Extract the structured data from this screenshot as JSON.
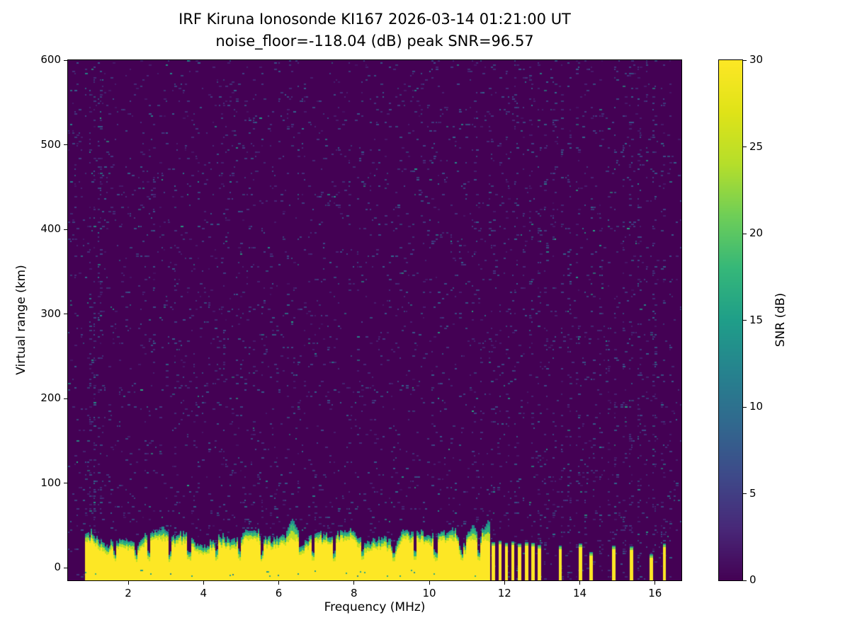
{
  "chart_data": {
    "type": "heatmap",
    "title_line1": "IRF Kiruna Ionosonde KI167 2026-03-14 01:21:00  UT",
    "title_line2": "noise_floor=-118.04 (dB) peak SNR=96.57",
    "station": "KI167",
    "datetime_ut": "2026-03-14 01:21:00",
    "noise_floor_db": -118.04,
    "peak_snr_db": 96.57,
    "xlabel": "Frequency (MHz)",
    "ylabel": "Virtual range (km)",
    "colorbar_label": "SNR (dB)",
    "xlim": [
      0.4,
      16.7
    ],
    "ylim": [
      -15,
      600
    ],
    "clim": [
      0,
      30
    ],
    "x_ticks": [
      2,
      4,
      6,
      8,
      10,
      12,
      14,
      16
    ],
    "y_ticks": [
      0,
      100,
      200,
      300,
      400,
      500,
      600
    ],
    "colorbar_ticks": [
      0,
      5,
      10,
      15,
      20,
      25,
      30
    ],
    "colormap": "viridis",
    "colormap_stops": [
      [
        0.0,
        "#440154"
      ],
      [
        0.1,
        "#482878"
      ],
      [
        0.2,
        "#3e4989"
      ],
      [
        0.3,
        "#31688e"
      ],
      [
        0.4,
        "#26828e"
      ],
      [
        0.5,
        "#1f9e89"
      ],
      [
        0.6,
        "#35b779"
      ],
      [
        0.7,
        "#6ece58"
      ],
      [
        0.8,
        "#b5de2b"
      ],
      [
        0.9,
        "#dfe318"
      ],
      [
        1.0,
        "#fde725"
      ]
    ],
    "features": {
      "background_snr_db": 0,
      "speckle_noise_snr_db": [
        2,
        10
      ],
      "ground_band": {
        "freq_start_mhz": 0.85,
        "freq_end_mhz": 11.62,
        "top_km_typical": 28,
        "top_km_range": [
          15,
          55
        ],
        "base_km": -15,
        "description": "saturated near-range echo band (SNR >= 30 dB) with ragged green/teal upper fringe"
      },
      "band_notches_mhz": [
        1.62,
        2.18,
        2.52,
        3.08,
        3.6,
        4.32,
        4.95,
        5.55,
        6.9,
        7.45,
        8.2,
        9.05,
        9.62,
        10.15,
        10.85,
        11.3
      ],
      "band_bumps": [
        [
          2.9,
          44
        ],
        [
          6.35,
          52
        ],
        [
          9.35,
          40
        ],
        [
          10.6,
          42
        ],
        [
          11.15,
          46
        ],
        [
          11.55,
          50
        ]
      ],
      "stepped_bars": [
        [
          11.7,
          26
        ],
        [
          11.88,
          28
        ],
        [
          12.05,
          25
        ],
        [
          12.22,
          27
        ],
        [
          12.4,
          24
        ],
        [
          12.58,
          26
        ],
        [
          12.75,
          25
        ],
        [
          12.93,
          23
        ],
        [
          13.48,
          22
        ],
        [
          14.02,
          24
        ],
        [
          14.3,
          14
        ],
        [
          14.9,
          22
        ],
        [
          15.37,
          21
        ],
        [
          15.9,
          12
        ],
        [
          16.25,
          24
        ]
      ],
      "noise_stripes": {
        "start_mhz": 11.68,
        "end_mhz": 16.45,
        "step_mhz": 0.205,
        "extra_mhz": [
          0.98,
          1.1,
          1.22
        ],
        "description": "faint full-height vertical RFI/stepped-sounding speckle columns above 11.6 MHz"
      }
    }
  }
}
